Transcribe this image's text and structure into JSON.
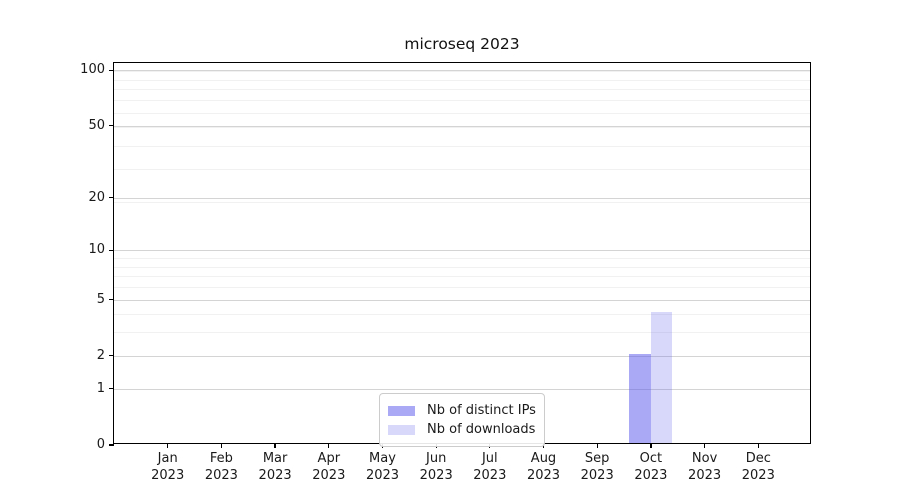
{
  "chart_data": {
    "type": "bar",
    "title": "microseq 2023",
    "xlabel": "",
    "ylabel": "",
    "categories": [
      "Jan 2023",
      "Feb 2023",
      "Mar 2023",
      "Apr 2023",
      "May 2023",
      "Jun 2023",
      "Jul 2023",
      "Aug 2023",
      "Sep 2023",
      "Oct 2023",
      "Nov 2023",
      "Dec 2023"
    ],
    "series": [
      {
        "name": "Nb of distinct IPs",
        "color": "rgba(90,90,235,0.52)",
        "values": [
          0,
          0,
          0,
          0,
          0,
          0,
          0,
          0,
          0,
          2,
          0,
          0
        ]
      },
      {
        "name": "Nb of downloads",
        "color": "rgba(90,90,235,0.24)",
        "values": [
          0,
          0,
          0,
          0,
          0,
          0,
          0,
          0,
          0,
          4,
          0,
          0
        ]
      }
    ],
    "yscale": "log1p",
    "ylim": [
      0,
      100
    ],
    "yticks": [
      0,
      1,
      2,
      5,
      10,
      20,
      50,
      100
    ],
    "grid": "horizontal, major and minor",
    "legend_position": "lower center"
  }
}
